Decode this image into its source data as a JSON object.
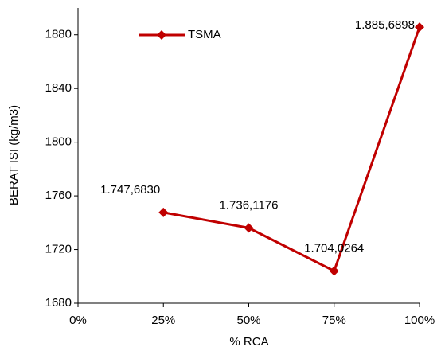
{
  "chart_data": {
    "type": "line",
    "x_label": "% RCA",
    "y_label": "BERAT ISI (kg/m3)",
    "x": [
      25,
      50,
      75,
      100
    ],
    "series": [
      {
        "name": "TSMA",
        "color": "#c00000",
        "values": [
          1747.683,
          1736.1176,
          1704.0264,
          1885.6898
        ],
        "value_labels": [
          "1.747,6830",
          "1.736,1176",
          "1.704,0264",
          "1.885,6898"
        ]
      }
    ],
    "xlim": [
      0,
      100
    ],
    "xticks": [
      {
        "value": 0,
        "label": "0%"
      },
      {
        "value": 25,
        "label": "25%"
      },
      {
        "value": 50,
        "label": "50%"
      },
      {
        "value": 75,
        "label": "75%"
      },
      {
        "value": 100,
        "label": "100%"
      }
    ],
    "ylim": [
      1680,
      1900
    ],
    "yticks": [
      1680,
      1720,
      1760,
      1800,
      1840,
      1880
    ],
    "grid": false,
    "legend": "top-left"
  }
}
